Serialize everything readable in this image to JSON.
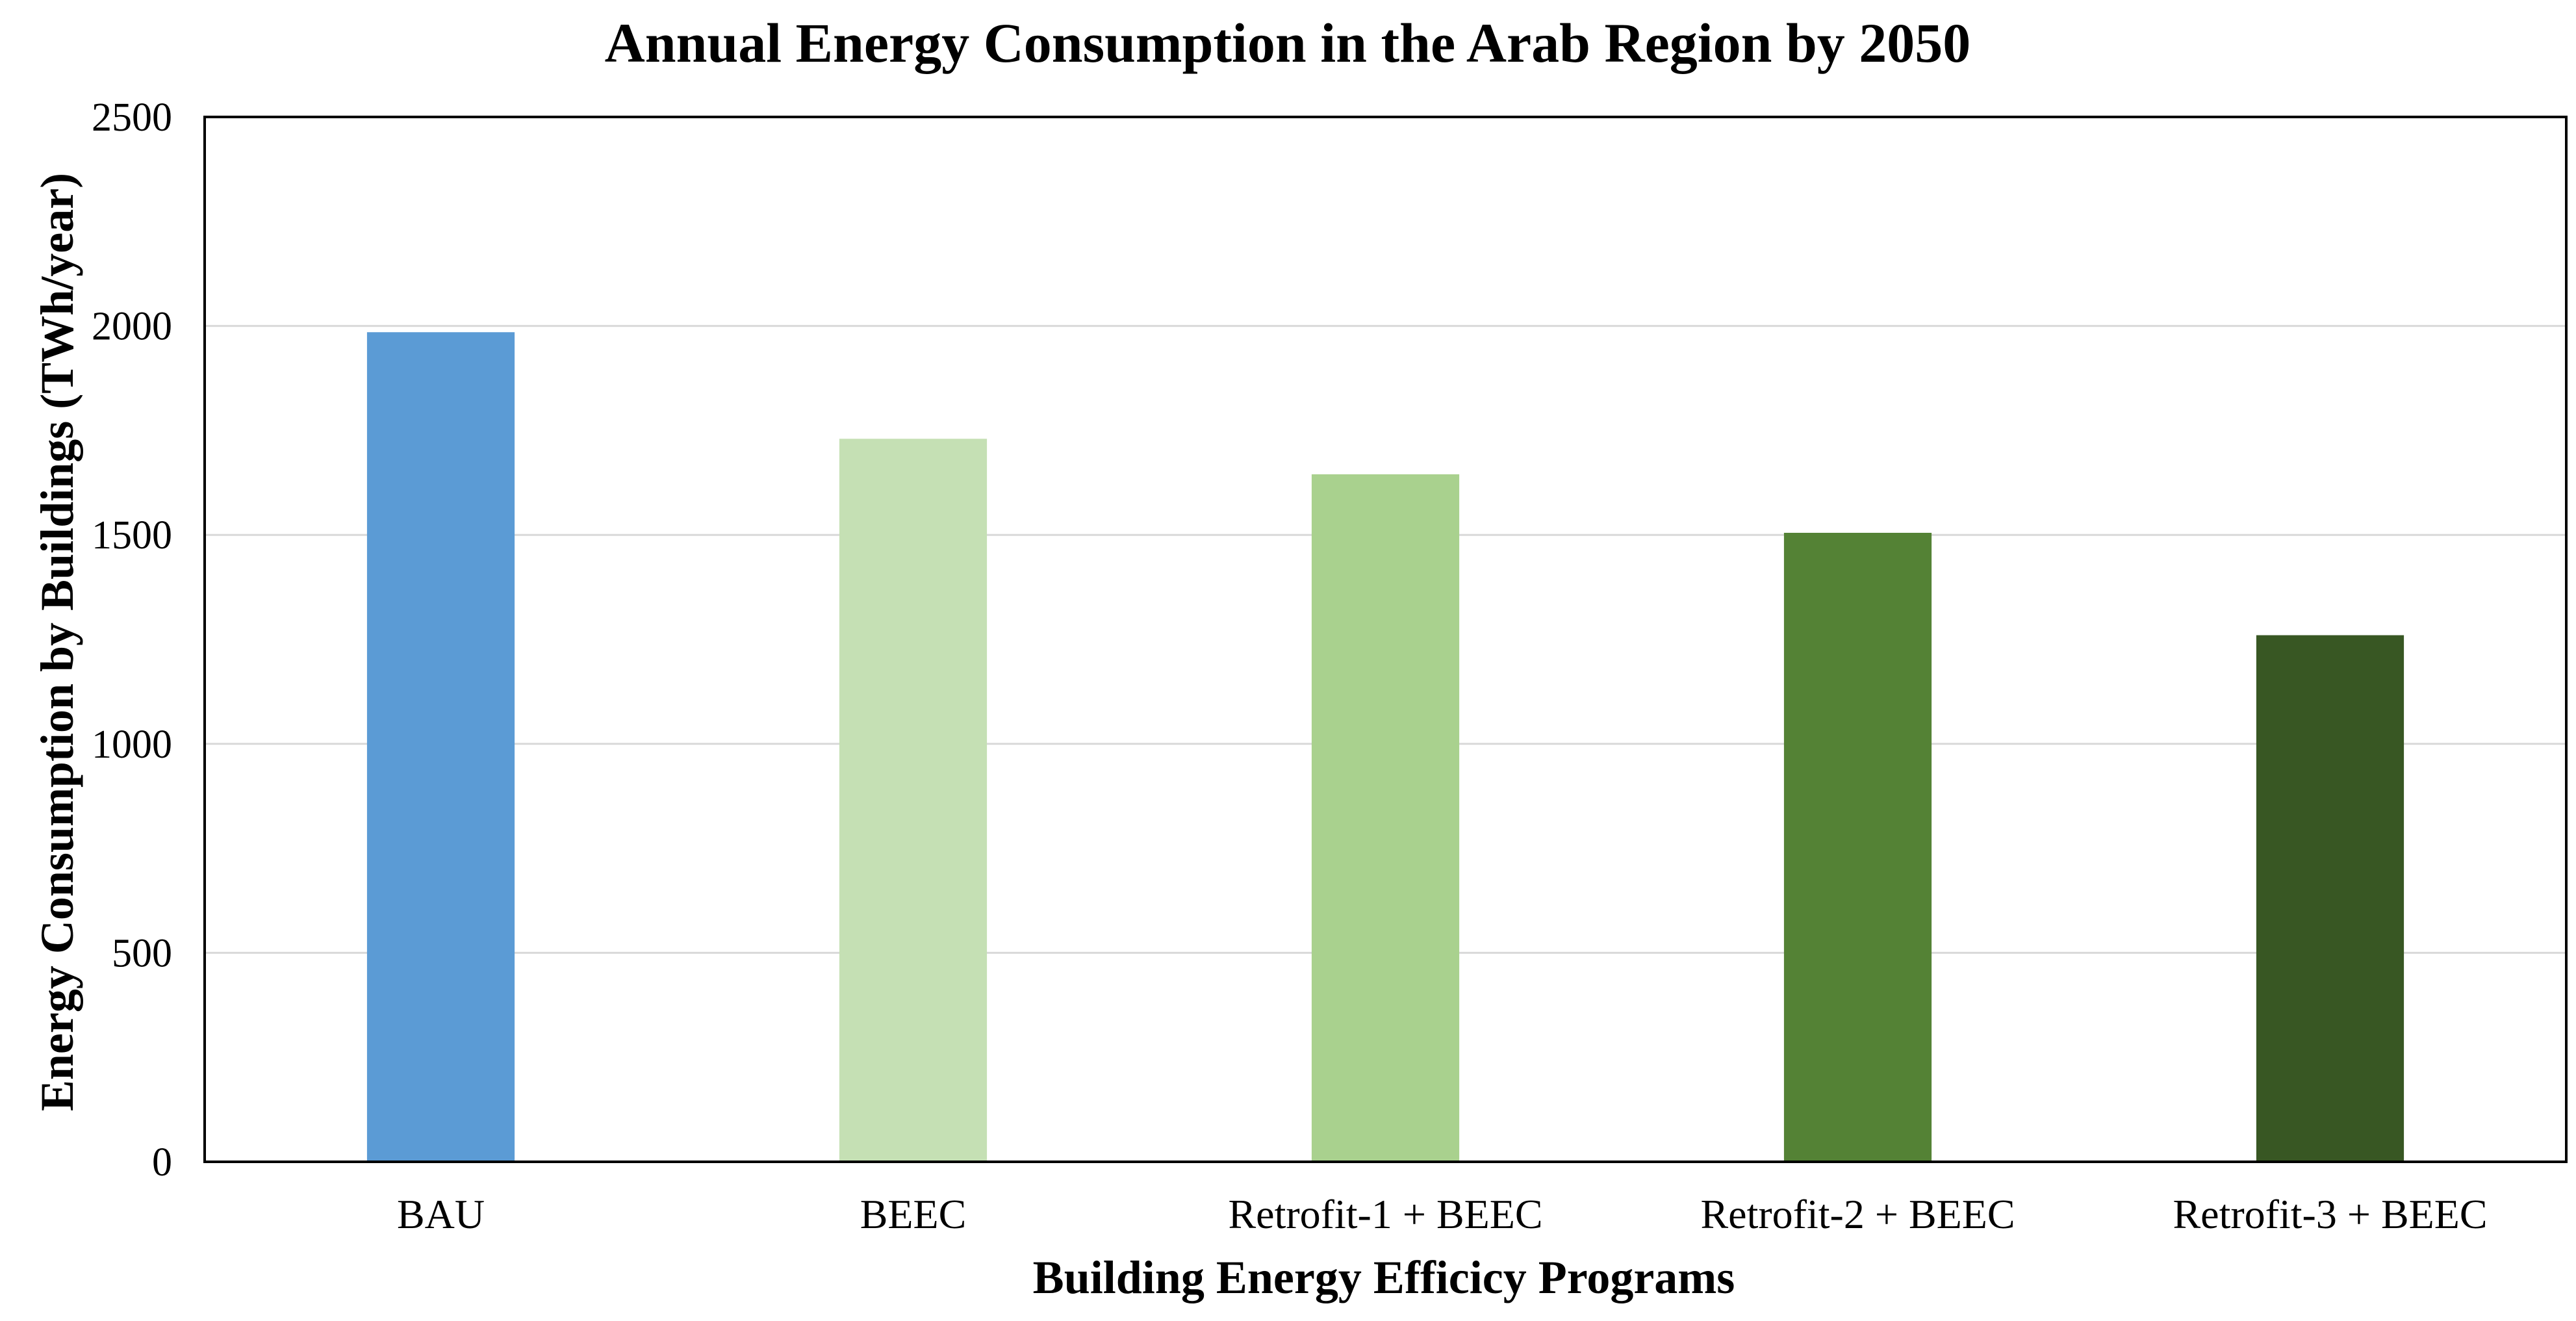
{
  "chart_data": {
    "type": "bar",
    "title": "Annual Energy Consumption in the Arab Region by 2050",
    "xlabel": "Building Energy Efficicy Programs",
    "ylabel": "Energy Consumption by Buildings (TWh/year)",
    "categories": [
      "BAU",
      "BEEC",
      "Retrofit-1 + BEEC",
      "Retrofit-2 + BEEC",
      "Retrofit-3 + BEEC"
    ],
    "values": [
      1985,
      1730,
      1645,
      1505,
      1260
    ],
    "colors": [
      "#5B9BD5",
      "#C5E0B4",
      "#A9D18E",
      "#548235",
      "#385723"
    ],
    "ylim": [
      0,
      2500
    ],
    "yticks": [
      0,
      500,
      1000,
      1500,
      2000,
      2500
    ],
    "grid": true,
    "legend": "none"
  }
}
